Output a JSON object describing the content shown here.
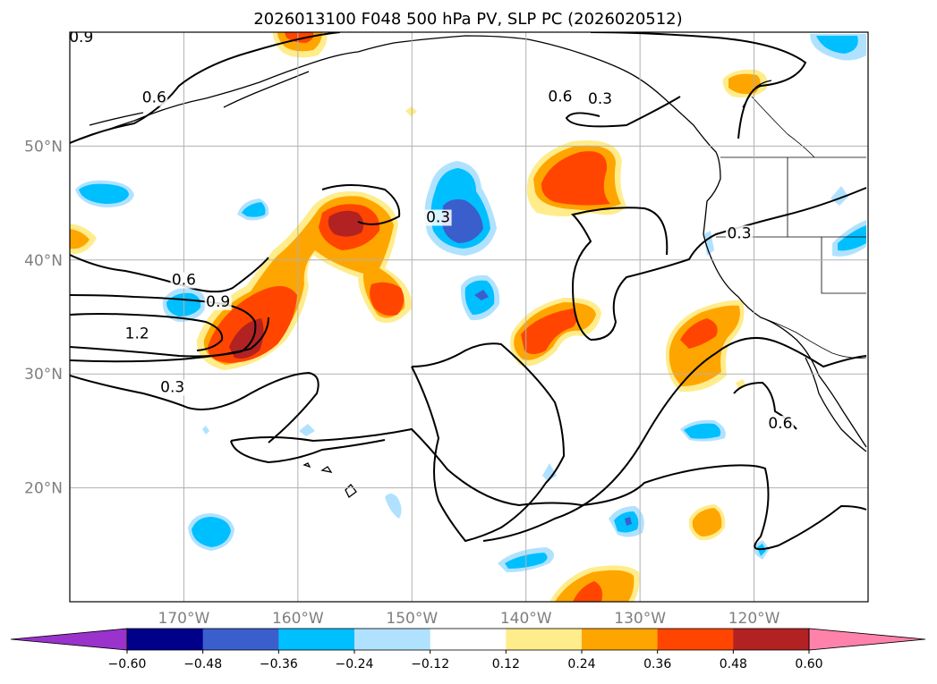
{
  "title": "2026013100 F048 500 hPa PV, SLP PC (2026020512)",
  "lat_labels": [
    {
      "text": "50°N",
      "lat": 50
    },
    {
      "text": "40°N",
      "lat": 40
    },
    {
      "text": "30°N",
      "lat": 30
    },
    {
      "text": "20°N",
      "lat": 20
    }
  ],
  "lon_labels": [
    {
      "text": "170°W",
      "lon": -170
    },
    {
      "text": "160°W",
      "lon": -160
    },
    {
      "text": "150°W",
      "lon": -150
    },
    {
      "text": "140°W",
      "lon": -140
    },
    {
      "text": "130°W",
      "lon": -130
    },
    {
      "text": "120°W",
      "lon": -120
    }
  ],
  "map_extent": {
    "lon_min": -180,
    "lon_max": -110,
    "lat_min": 10,
    "lat_max": 60
  },
  "colorbar": {
    "ticks": [
      "−0.60",
      "−0.48",
      "−0.36",
      "−0.24",
      "−0.12",
      "0.12",
      "0.24",
      "0.36",
      "0.48",
      "0.60"
    ],
    "levels": [
      -0.6,
      -0.48,
      -0.36,
      -0.24,
      -0.12,
      0.12,
      0.24,
      0.36,
      0.48,
      0.6
    ],
    "colors": [
      "#9933cc",
      "#00008b",
      "#3a5fcd",
      "#00bfff",
      "#b0e2ff",
      "#ffffff",
      "#ffec8b",
      "#ffa500",
      "#ff4500",
      "#b22222",
      "#ff82ab"
    ]
  },
  "contour_labels": [
    {
      "text": "0.9",
      "lon": -179.0,
      "lat": 59.2
    },
    {
      "text": "0.6",
      "lon": -172.6,
      "lat": 53.9
    },
    {
      "text": "0.3",
      "lon": -147.7,
      "lat": 43.4
    },
    {
      "text": "0.6",
      "lon": -170.0,
      "lat": 37.9
    },
    {
      "text": "0.9",
      "lon": -167.0,
      "lat": 36.0
    },
    {
      "text": "1.2",
      "lon": -174.1,
      "lat": 33.2
    },
    {
      "text": "0.3",
      "lon": -171.0,
      "lat": 28.5
    },
    {
      "text": "0.6",
      "lon": -137.0,
      "lat": 54.0
    },
    {
      "text": "0.3",
      "lon": -133.5,
      "lat": 53.8
    },
    {
      "text": "0.3",
      "lon": -121.3,
      "lat": 42.0
    },
    {
      "text": "0.6",
      "lon": -117.7,
      "lat": 25.3
    }
  ]
}
